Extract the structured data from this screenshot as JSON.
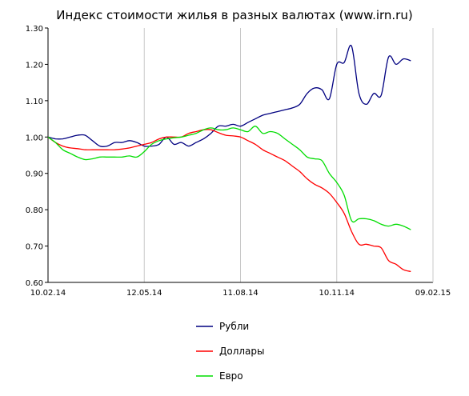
{
  "chart_data": {
    "type": "line",
    "title": "Индекс стоимости жилья в разных валютах (www.irn.ru)",
    "xlabel": "",
    "ylabel": "",
    "x_tick_labels": [
      "10.02.14",
      "12.05.14",
      "11.08.14",
      "10.11.14",
      "09.02.15"
    ],
    "y_tick_labels": [
      "1.30",
      "1.20",
      "1.10",
      "1.00",
      "0.90",
      "0.80",
      "0.70",
      "0.60"
    ],
    "ylim": [
      0.6,
      1.3
    ],
    "xlim_weeks": [
      0,
      52
    ],
    "grid": "vertical",
    "legend_position": "bottom",
    "series": [
      {
        "name": "Рубли",
        "color": "#000080",
        "points": [
          [
            0,
            1.0
          ],
          [
            1,
            0.995
          ],
          [
            2,
            0.995
          ],
          [
            3,
            1.0
          ],
          [
            4,
            1.005
          ],
          [
            5,
            1.005
          ],
          [
            6,
            0.99
          ],
          [
            7,
            0.975
          ],
          [
            8,
            0.975
          ],
          [
            9,
            0.985
          ],
          [
            10,
            0.985
          ],
          [
            11,
            0.99
          ],
          [
            12,
            0.985
          ],
          [
            13,
            0.975
          ],
          [
            14,
            0.975
          ],
          [
            15,
            0.98
          ],
          [
            16,
            1.0
          ],
          [
            17,
            0.98
          ],
          [
            18,
            0.985
          ],
          [
            19,
            0.975
          ],
          [
            20,
            0.985
          ],
          [
            21,
            0.995
          ],
          [
            22,
            1.01
          ],
          [
            23,
            1.03
          ],
          [
            24,
            1.03
          ],
          [
            25,
            1.035
          ],
          [
            26,
            1.03
          ],
          [
            27,
            1.04
          ],
          [
            28,
            1.05
          ],
          [
            29,
            1.06
          ],
          [
            30,
            1.065
          ],
          [
            31,
            1.07
          ],
          [
            32,
            1.075
          ],
          [
            33,
            1.08
          ],
          [
            34,
            1.09
          ],
          [
            35,
            1.12
          ],
          [
            36,
            1.135
          ],
          [
            37,
            1.13
          ],
          [
            38,
            1.105
          ],
          [
            39,
            1.2
          ],
          [
            40,
            1.205
          ],
          [
            41,
            1.25
          ],
          [
            42,
            1.12
          ],
          [
            43,
            1.09
          ],
          [
            44,
            1.12
          ],
          [
            45,
            1.115
          ],
          [
            46,
            1.22
          ],
          [
            47,
            1.2
          ],
          [
            48,
            1.215
          ],
          [
            49,
            1.21
          ]
        ]
      },
      {
        "name": "Доллары",
        "color": "#ff0000",
        "points": [
          [
            0,
            1.0
          ],
          [
            1,
            0.985
          ],
          [
            2,
            0.975
          ],
          [
            3,
            0.97
          ],
          [
            4,
            0.968
          ],
          [
            5,
            0.965
          ],
          [
            6,
            0.965
          ],
          [
            7,
            0.965
          ],
          [
            8,
            0.965
          ],
          [
            9,
            0.965
          ],
          [
            10,
            0.967
          ],
          [
            11,
            0.97
          ],
          [
            12,
            0.975
          ],
          [
            13,
            0.98
          ],
          [
            14,
            0.985
          ],
          [
            15,
            0.995
          ],
          [
            16,
            1.0
          ],
          [
            17,
            1.0
          ],
          [
            18,
            1.0
          ],
          [
            19,
            1.01
          ],
          [
            20,
            1.015
          ],
          [
            21,
            1.02
          ],
          [
            22,
            1.02
          ],
          [
            23,
            1.012
          ],
          [
            24,
            1.005
          ],
          [
            25,
            1.003
          ],
          [
            26,
            1.0
          ],
          [
            27,
            0.99
          ],
          [
            28,
            0.98
          ],
          [
            29,
            0.965
          ],
          [
            30,
            0.955
          ],
          [
            31,
            0.945
          ],
          [
            32,
            0.935
          ],
          [
            33,
            0.92
          ],
          [
            34,
            0.905
          ],
          [
            35,
            0.885
          ],
          [
            36,
            0.87
          ],
          [
            37,
            0.86
          ],
          [
            38,
            0.845
          ],
          [
            39,
            0.82
          ],
          [
            40,
            0.79
          ],
          [
            41,
            0.74
          ],
          [
            42,
            0.705
          ],
          [
            43,
            0.705
          ],
          [
            44,
            0.7
          ],
          [
            45,
            0.695
          ],
          [
            46,
            0.66
          ],
          [
            47,
            0.65
          ],
          [
            48,
            0.635
          ],
          [
            49,
            0.63
          ]
        ]
      },
      {
        "name": "Евро",
        "color": "#00dd00",
        "points": [
          [
            0,
            1.0
          ],
          [
            1,
            0.985
          ],
          [
            2,
            0.965
          ],
          [
            3,
            0.955
          ],
          [
            4,
            0.945
          ],
          [
            5,
            0.938
          ],
          [
            6,
            0.94
          ],
          [
            7,
            0.945
          ],
          [
            8,
            0.945
          ],
          [
            9,
            0.945
          ],
          [
            10,
            0.945
          ],
          [
            11,
            0.948
          ],
          [
            12,
            0.945
          ],
          [
            13,
            0.96
          ],
          [
            14,
            0.98
          ],
          [
            15,
            0.99
          ],
          [
            16,
            0.995
          ],
          [
            17,
            0.998
          ],
          [
            18,
            1.0
          ],
          [
            19,
            1.005
          ],
          [
            20,
            1.01
          ],
          [
            21,
            1.02
          ],
          [
            22,
            1.025
          ],
          [
            23,
            1.02
          ],
          [
            24,
            1.02
          ],
          [
            25,
            1.025
          ],
          [
            26,
            1.02
          ],
          [
            27,
            1.015
          ],
          [
            28,
            1.03
          ],
          [
            29,
            1.01
          ],
          [
            30,
            1.015
          ],
          [
            31,
            1.01
          ],
          [
            32,
            0.995
          ],
          [
            33,
            0.98
          ],
          [
            34,
            0.965
          ],
          [
            35,
            0.945
          ],
          [
            36,
            0.94
          ],
          [
            37,
            0.935
          ],
          [
            38,
            0.9
          ],
          [
            39,
            0.875
          ],
          [
            40,
            0.84
          ],
          [
            41,
            0.77
          ],
          [
            42,
            0.775
          ],
          [
            43,
            0.775
          ],
          [
            44,
            0.77
          ],
          [
            45,
            0.76
          ],
          [
            46,
            0.755
          ],
          [
            47,
            0.76
          ],
          [
            48,
            0.755
          ],
          [
            49,
            0.745
          ]
        ]
      }
    ]
  }
}
